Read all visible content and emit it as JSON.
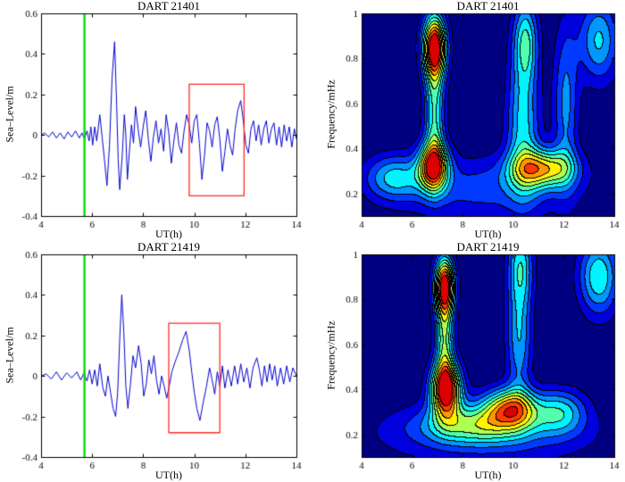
{
  "figure": {
    "background": "#ffffff"
  },
  "colors": {
    "series_line": "#0000cc",
    "event_line": "#00dd00",
    "highlight_box": "#ff2a2a",
    "axis": "#000000",
    "contour_line": "#000000"
  },
  "chart_data": [
    {
      "type": "line",
      "title": "DART 21401",
      "xlabel": "UT(h)",
      "ylabel": "Sea–Level/m",
      "xlim": [
        4,
        14
      ],
      "ylim": [
        -0.4,
        0.6
      ],
      "xticks": [
        4,
        6,
        8,
        10,
        12,
        14
      ],
      "yticks": [
        -0.4,
        -0.2,
        0,
        0.2,
        0.4,
        0.6
      ],
      "event_line_x": 5.7,
      "highlight_box": {
        "x0": 9.8,
        "x1": 11.95,
        "y0": -0.3,
        "y1": 0.25
      },
      "series": [
        [
          4,
          0
        ],
        [
          4.15,
          0.01
        ],
        [
          4.3,
          -0.01
        ],
        [
          4.45,
          0.015
        ],
        [
          4.6,
          -0.015
        ],
        [
          4.75,
          0.01
        ],
        [
          4.9,
          -0.02
        ],
        [
          5.05,
          0.015
        ],
        [
          5.2,
          -0.01
        ],
        [
          5.35,
          0.02
        ],
        [
          5.5,
          -0.015
        ],
        [
          5.6,
          0.01
        ],
        [
          5.7,
          -0.02
        ],
        [
          5.8,
          0.02
        ],
        [
          5.88,
          -0.03
        ],
        [
          5.95,
          0.04
        ],
        [
          6.02,
          -0.05
        ],
        [
          6.1,
          0.04
        ],
        [
          6.18,
          -0.03
        ],
        [
          6.3,
          0.1
        ],
        [
          6.4,
          -0.02
        ],
        [
          6.48,
          -0.12
        ],
        [
          6.58,
          -0.25
        ],
        [
          6.68,
          -0.05
        ],
        [
          6.78,
          0.28
        ],
        [
          6.88,
          0.46
        ],
        [
          6.96,
          0.15
        ],
        [
          7.02,
          -0.12
        ],
        [
          7.08,
          -0.27
        ],
        [
          7.18,
          -0.1
        ],
        [
          7.26,
          0.1
        ],
        [
          7.32,
          0
        ],
        [
          7.38,
          -0.22
        ],
        [
          7.46,
          -0.08
        ],
        [
          7.54,
          0.05
        ],
        [
          7.62,
          -0.04
        ],
        [
          7.7,
          0.14
        ],
        [
          7.8,
          0.03
        ],
        [
          7.9,
          -0.06
        ],
        [
          8,
          0.04
        ],
        [
          8.1,
          0.12
        ],
        [
          8.2,
          -0.02
        ],
        [
          8.3,
          -0.13
        ],
        [
          8.4,
          -0.01
        ],
        [
          8.5,
          0.07
        ],
        [
          8.6,
          -0.04
        ],
        [
          8.7,
          0.03
        ],
        [
          8.8,
          -0.08
        ],
        [
          8.9,
          0.1
        ],
        [
          9,
          0.01
        ],
        [
          9.1,
          -0.14
        ],
        [
          9.2,
          -0.03
        ],
        [
          9.3,
          0.06
        ],
        [
          9.4,
          -0.05
        ],
        [
          9.5,
          -0.09
        ],
        [
          9.6,
          0.02
        ],
        [
          9.7,
          0.1
        ],
        [
          9.8,
          0.05
        ],
        [
          9.9,
          -0.04
        ],
        [
          10,
          0.07
        ],
        [
          10.1,
          0.1
        ],
        [
          10.2,
          -0.04
        ],
        [
          10.3,
          -0.22
        ],
        [
          10.4,
          -0.1
        ],
        [
          10.5,
          0.06
        ],
        [
          10.6,
          0.02
        ],
        [
          10.7,
          -0.06
        ],
        [
          10.8,
          0.05
        ],
        [
          10.9,
          0.09
        ],
        [
          11,
          -0.02
        ],
        [
          11.1,
          -0.18
        ],
        [
          11.2,
          -0.08
        ],
        [
          11.3,
          0.03
        ],
        [
          11.4,
          -0.05
        ],
        [
          11.5,
          -0.1
        ],
        [
          11.6,
          0.03
        ],
        [
          11.7,
          0.12
        ],
        [
          11.82,
          0.17
        ],
        [
          11.92,
          0.07
        ],
        [
          12.02,
          -0.05
        ],
        [
          12.12,
          -0.09
        ],
        [
          12.22,
          0.03
        ],
        [
          12.32,
          0.07
        ],
        [
          12.42,
          -0.03
        ],
        [
          12.52,
          0.05
        ],
        [
          12.62,
          -0.05
        ],
        [
          12.72,
          0.03
        ],
        [
          12.82,
          0.07
        ],
        [
          12.92,
          -0.04
        ],
        [
          13.02,
          0.03
        ],
        [
          13.12,
          0.06
        ],
        [
          13.22,
          -0.05
        ],
        [
          13.32,
          0.04
        ],
        [
          13.42,
          -0.06
        ],
        [
          13.52,
          0.05
        ],
        [
          13.62,
          -0.03
        ],
        [
          13.72,
          0.04
        ],
        [
          13.82,
          -0.06
        ],
        [
          13.92,
          0.03
        ],
        [
          14,
          -0.02
        ]
      ]
    },
    {
      "type": "heatmap",
      "title": "DART 21401",
      "xlabel": "UT(h)",
      "ylabel": "Frequency/mHz",
      "xlim": [
        4,
        14
      ],
      "ylim": [
        0.1,
        1
      ],
      "xticks": [
        4,
        6,
        8,
        10,
        12,
        14
      ],
      "yticks": [
        0.2,
        0.4,
        0.6,
        0.8,
        1
      ],
      "levels": 11,
      "blobs": [
        {
          "x": 6.9,
          "f": 0.85,
          "a": 1.0,
          "sx": 0.33,
          "sf": 0.1
        },
        {
          "x": 6.85,
          "f": 0.32,
          "a": 0.8,
          "sx": 0.42,
          "sf": 0.075
        },
        {
          "x": 6.9,
          "f": 0.55,
          "a": 0.45,
          "sx": 0.28,
          "sf": 0.18
        },
        {
          "x": 5.3,
          "f": 0.27,
          "a": 0.35,
          "sx": 0.8,
          "sf": 0.07
        },
        {
          "x": 11.2,
          "f": 0.31,
          "a": 0.62,
          "sx": 0.85,
          "sf": 0.06
        },
        {
          "x": 10.4,
          "f": 0.5,
          "a": 0.4,
          "sx": 0.45,
          "sf": 0.22
        },
        {
          "x": 10.5,
          "f": 0.88,
          "a": 0.42,
          "sx": 0.35,
          "sf": 0.13
        },
        {
          "x": 12.1,
          "f": 0.6,
          "a": 0.3,
          "sx": 0.35,
          "sf": 0.25
        },
        {
          "x": 13.4,
          "f": 0.88,
          "a": 0.38,
          "sx": 0.55,
          "sf": 0.13
        },
        {
          "x": 8.9,
          "f": 0.22,
          "a": 0.22,
          "sx": 2.5,
          "sf": 0.1
        }
      ]
    },
    {
      "type": "line",
      "title": "DART 21419",
      "xlabel": "UT(h)",
      "ylabel": "Sea–Level/m",
      "xlim": [
        4,
        14
      ],
      "ylim": [
        -0.4,
        0.6
      ],
      "xticks": [
        4,
        6,
        8,
        10,
        12,
        14
      ],
      "yticks": [
        -0.4,
        -0.2,
        0,
        0.2,
        0.4,
        0.6
      ],
      "event_line_x": 5.7,
      "highlight_box": {
        "x0": 9.0,
        "x1": 11.0,
        "y0": -0.28,
        "y1": 0.26
      },
      "series": [
        [
          4,
          0
        ],
        [
          4.2,
          0.01
        ],
        [
          4.4,
          -0.015
        ],
        [
          4.6,
          0.02
        ],
        [
          4.8,
          -0.02
        ],
        [
          5,
          0.015
        ],
        [
          5.2,
          -0.01
        ],
        [
          5.4,
          0.02
        ],
        [
          5.55,
          -0.02
        ],
        [
          5.68,
          0.015
        ],
        [
          5.8,
          -0.025
        ],
        [
          5.9,
          0.03
        ],
        [
          6,
          -0.04
        ],
        [
          6.1,
          0.03
        ],
        [
          6.2,
          -0.05
        ],
        [
          6.3,
          0.06
        ],
        [
          6.42,
          -0.06
        ],
        [
          6.52,
          -0.1
        ],
        [
          6.62,
          0
        ],
        [
          6.72,
          -0.08
        ],
        [
          6.82,
          -0.16
        ],
        [
          6.92,
          -0.2
        ],
        [
          7,
          -0.08
        ],
        [
          7.08,
          0.18
        ],
        [
          7.16,
          0.4
        ],
        [
          7.24,
          0.22
        ],
        [
          7.32,
          -0.05
        ],
        [
          7.4,
          -0.16
        ],
        [
          7.5,
          -0.04
        ],
        [
          7.6,
          0.1
        ],
        [
          7.7,
          0.04
        ],
        [
          7.82,
          0.15
        ],
        [
          7.92,
          0.06
        ],
        [
          8.02,
          -0.1
        ],
        [
          8.12,
          -0.04
        ],
        [
          8.22,
          0.08
        ],
        [
          8.32,
          0.01
        ],
        [
          8.42,
          0.1
        ],
        [
          8.52,
          -0.02
        ],
        [
          8.62,
          -0.09
        ],
        [
          8.72,
          0
        ],
        [
          8.82,
          -0.05
        ],
        [
          8.92,
          -0.11
        ],
        [
          9.02,
          -0.05
        ],
        [
          9.12,
          0.02
        ],
        [
          9.25,
          0.07
        ],
        [
          9.4,
          0.12
        ],
        [
          9.55,
          0.18
        ],
        [
          9.68,
          0.22
        ],
        [
          9.8,
          0.13
        ],
        [
          9.9,
          0.02
        ],
        [
          10,
          -0.08
        ],
        [
          10.1,
          -0.16
        ],
        [
          10.22,
          -0.22
        ],
        [
          10.35,
          -0.13
        ],
        [
          10.48,
          -0.05
        ],
        [
          10.6,
          0.04
        ],
        [
          10.7,
          -0.02
        ],
        [
          10.8,
          -0.09
        ],
        [
          10.9,
          0.02
        ],
        [
          11,
          -0.05
        ],
        [
          11.1,
          0.05
        ],
        [
          11.2,
          -0.06
        ],
        [
          11.32,
          0.03
        ],
        [
          11.45,
          -0.05
        ],
        [
          11.58,
          0.05
        ],
        [
          11.7,
          -0.04
        ],
        [
          11.82,
          0.06
        ],
        [
          11.94,
          -0.03
        ],
        [
          12.06,
          0.04
        ],
        [
          12.18,
          -0.06
        ],
        [
          12.3,
          0.04
        ],
        [
          12.45,
          0.09
        ],
        [
          12.55,
          0.03
        ],
        [
          12.65,
          -0.05
        ],
        [
          12.75,
          0.05
        ],
        [
          12.85,
          -0.03
        ],
        [
          12.95,
          0.06
        ],
        [
          13.05,
          -0.02
        ],
        [
          13.15,
          0.05
        ],
        [
          13.25,
          -0.05
        ],
        [
          13.38,
          0.04
        ],
        [
          13.5,
          -0.04
        ],
        [
          13.62,
          0.05
        ],
        [
          13.74,
          -0.03
        ],
        [
          13.86,
          0.04
        ],
        [
          14,
          0
        ]
      ]
    },
    {
      "type": "heatmap",
      "title": "DART 21419",
      "xlabel": "UT(h)",
      "ylabel": "Frequency/mHz",
      "xlim": [
        4,
        14
      ],
      "ylim": [
        0.1,
        1
      ],
      "xticks": [
        4,
        6,
        8,
        10,
        12,
        14
      ],
      "yticks": [
        0.2,
        0.4,
        0.6,
        0.8,
        1
      ],
      "levels": 11,
      "blobs": [
        {
          "x": 7.3,
          "f": 0.86,
          "a": 0.95,
          "sx": 0.28,
          "sf": 0.09
        },
        {
          "x": 7.35,
          "f": 0.4,
          "a": 1.0,
          "sx": 0.42,
          "sf": 0.085
        },
        {
          "x": 7.3,
          "f": 0.63,
          "a": 0.5,
          "sx": 0.26,
          "sf": 0.14
        },
        {
          "x": 9.9,
          "f": 0.32,
          "a": 0.65,
          "sx": 0.75,
          "sf": 0.06
        },
        {
          "x": 8.6,
          "f": 0.24,
          "a": 0.4,
          "sx": 1.5,
          "sf": 0.06
        },
        {
          "x": 10.25,
          "f": 0.62,
          "a": 0.35,
          "sx": 0.35,
          "sf": 0.18
        },
        {
          "x": 10.3,
          "f": 0.95,
          "a": 0.4,
          "sx": 0.35,
          "sf": 0.13
        },
        {
          "x": 13.4,
          "f": 0.9,
          "a": 0.45,
          "sx": 0.55,
          "sf": 0.12
        },
        {
          "x": 11.9,
          "f": 0.3,
          "a": 0.35,
          "sx": 0.7,
          "sf": 0.07
        },
        {
          "x": 8.9,
          "f": 0.2,
          "a": 0.2,
          "sx": 3.2,
          "sf": 0.1
        }
      ]
    }
  ]
}
